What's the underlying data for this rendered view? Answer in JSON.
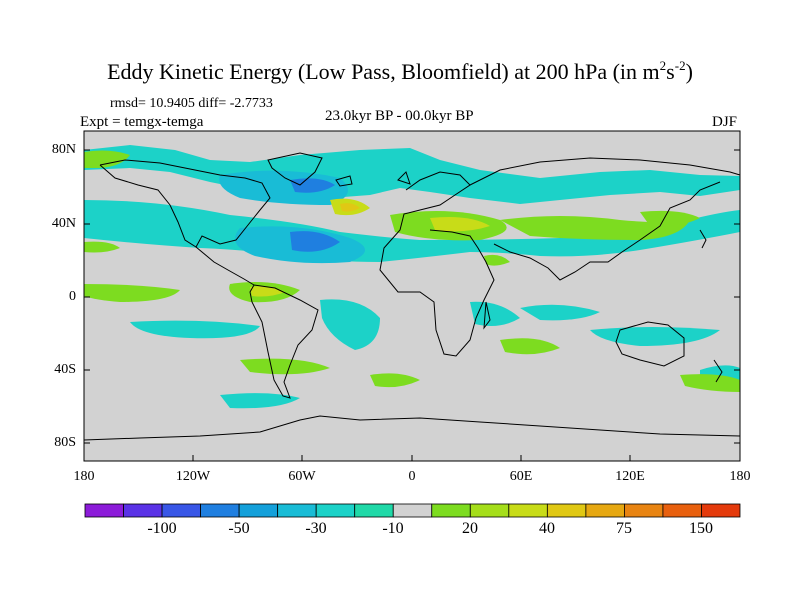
{
  "title": {
    "main": "Eddy Kinetic Energy (Low Pass, Bloomfield) at 200 hPa (in m",
    "sup1": "2",
    "mid": "s",
    "sup2": "-2",
    "end": ")"
  },
  "stats": "rmsd= 10.9405 diff= -2.7733",
  "experiment": "Expt = temgx-temga",
  "period": "23.0kyr BP - 00.0kyr BP",
  "season": "DJF",
  "lat_labels": [
    "80N",
    "40N",
    "0",
    "40S",
    "80S"
  ],
  "lon_labels": [
    "180",
    "120W",
    "60W",
    "0",
    "60E",
    "120E",
    "180"
  ],
  "colorbar": {
    "colors": [
      "#8c1bd9",
      "#5a32e6",
      "#3856e6",
      "#1f7fe0",
      "#14a0da",
      "#19bcd6",
      "#1cd2c8",
      "#20d9a8",
      "#d2d2d2",
      "#7ddc20",
      "#a5de1a",
      "#c8dc18",
      "#e0c814",
      "#e6a812",
      "#e88412",
      "#e8600e",
      "#e43a0c"
    ],
    "labels": [
      "-100",
      "-50",
      "-30",
      "-10",
      "20",
      "40",
      "75",
      "150"
    ]
  },
  "map_colors": {
    "ocean_land": "#d2d2d2",
    "neg_light": "#1cd2c8",
    "neg_mid": "#19bcd6",
    "neg_strong": "#1f7fe0",
    "pos_light": "#7ddc20",
    "pos_mid": "#c8dc18",
    "pos_strong": "#e0c814"
  }
}
